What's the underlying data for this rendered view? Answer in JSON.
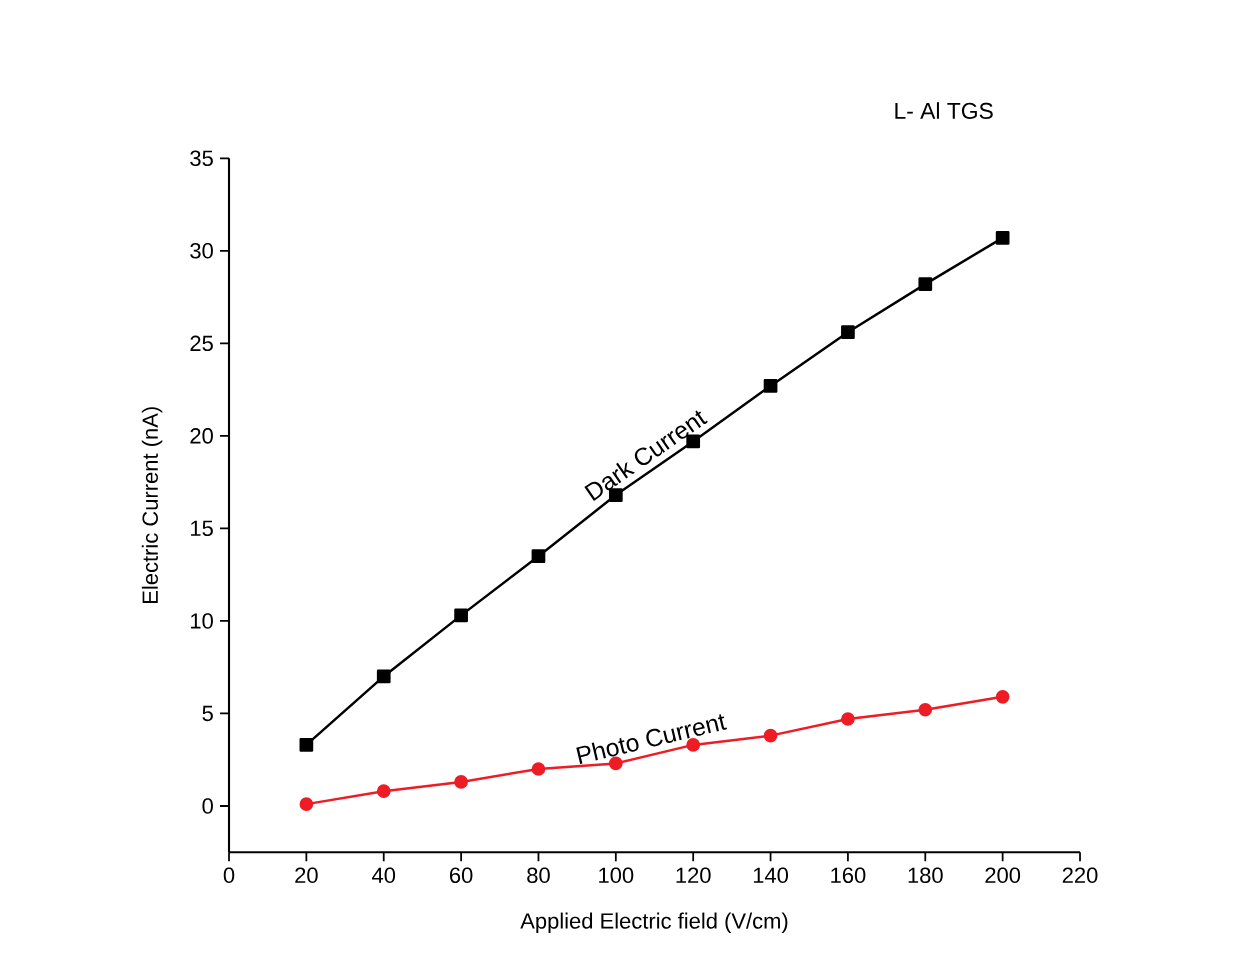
{
  "chart_data": {
    "type": "line",
    "xlabel": "Applied Electric field (V/cm)",
    "ylabel": "Electric Current (nA)",
    "annotations": [
      "L- Al TGS"
    ],
    "x": [
      20,
      40,
      60,
      80,
      100,
      120,
      140,
      160,
      180,
      200
    ],
    "series": [
      {
        "name": "Dark Current",
        "color": "#000000",
        "marker": "square",
        "values": [
          3.3,
          7.0,
          10.3,
          13.5,
          16.8,
          19.7,
          22.7,
          25.6,
          28.2,
          30.7
        ]
      },
      {
        "name": "Photo Current",
        "color": "#ee1c24",
        "marker": "circle",
        "values": [
          0.1,
          0.8,
          1.3,
          2.0,
          2.3,
          3.3,
          3.8,
          4.7,
          5.2,
          5.9
        ]
      }
    ],
    "xlim": [
      0,
      220
    ],
    "xticks": [
      0,
      20,
      40,
      60,
      80,
      100,
      120,
      140,
      160,
      180,
      200,
      220
    ],
    "ylim": [
      -2.5,
      35
    ],
    "yticks": [
      0,
      5,
      10,
      15,
      20,
      25,
      30,
      35
    ],
    "grid": false,
    "legend": false,
    "line_style": "solid"
  }
}
